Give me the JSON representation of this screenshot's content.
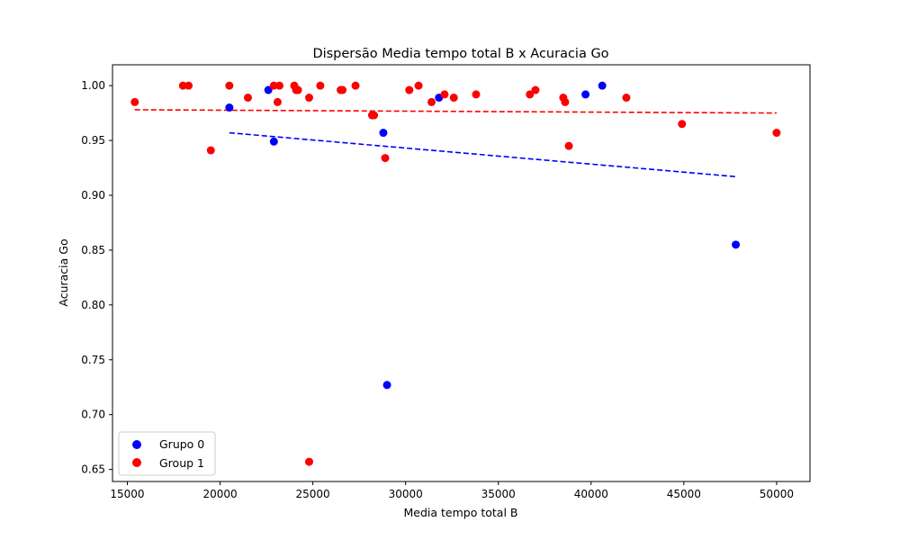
{
  "chart_data": {
    "type": "scatter",
    "title": "Dispersão Media tempo total B x Acuracia Go",
    "xlabel": "Media tempo total B",
    "ylabel": "Acuracia Go",
    "xlim": [
      14200,
      51800
    ],
    "ylim": [
      0.639,
      1.019
    ],
    "xticks": [
      15000,
      20000,
      25000,
      30000,
      35000,
      40000,
      45000,
      50000
    ],
    "yticks": [
      0.65,
      0.7,
      0.75,
      0.8,
      0.85,
      0.9,
      0.95,
      1.0
    ],
    "xtick_labels": [
      "15000",
      "20000",
      "25000",
      "30000",
      "35000",
      "40000",
      "45000",
      "50000"
    ],
    "ytick_labels": [
      "0.65",
      "0.70",
      "0.75",
      "0.80",
      "0.85",
      "0.90",
      "0.95",
      "1.00"
    ],
    "grid": false,
    "legend_position": "lower-left",
    "series": [
      {
        "name": "Grupo 0",
        "color": "#0000ff",
        "points": [
          [
            20500,
            0.98
          ],
          [
            22600,
            0.996
          ],
          [
            22900,
            0.949
          ],
          [
            28200,
            0.973
          ],
          [
            28800,
            0.957
          ],
          [
            29000,
            0.727
          ],
          [
            31800,
            0.989
          ],
          [
            39700,
            0.992
          ],
          [
            40600,
            1.0
          ],
          [
            47800,
            0.855
          ]
        ],
        "trendline": {
          "x": [
            20500,
            47800
          ],
          "y": [
            0.957,
            0.917
          ],
          "style": "dashed"
        }
      },
      {
        "name": "Group 1",
        "color": "#ff0000",
        "points": [
          [
            15400,
            0.985
          ],
          [
            18000,
            1.0
          ],
          [
            18300,
            1.0
          ],
          [
            19500,
            0.941
          ],
          [
            20500,
            1.0
          ],
          [
            21500,
            0.989
          ],
          [
            22900,
            1.0
          ],
          [
            23100,
            0.985
          ],
          [
            23200,
            1.0
          ],
          [
            24000,
            1.0
          ],
          [
            24100,
            0.996
          ],
          [
            24200,
            0.996
          ],
          [
            24800,
            0.989
          ],
          [
            24800,
            0.657
          ],
          [
            25400,
            1.0
          ],
          [
            26500,
            0.996
          ],
          [
            26600,
            0.996
          ],
          [
            27300,
            1.0
          ],
          [
            28200,
            0.973
          ],
          [
            28300,
            0.973
          ],
          [
            28900,
            0.934
          ],
          [
            30200,
            0.996
          ],
          [
            30700,
            1.0
          ],
          [
            31400,
            0.985
          ],
          [
            32100,
            0.992
          ],
          [
            32600,
            0.989
          ],
          [
            33800,
            0.992
          ],
          [
            36700,
            0.992
          ],
          [
            37000,
            0.996
          ],
          [
            38500,
            0.989
          ],
          [
            38600,
            0.985
          ],
          [
            38800,
            0.945
          ],
          [
            41900,
            0.989
          ],
          [
            44900,
            0.965
          ],
          [
            50000,
            0.957
          ]
        ],
        "trendline": {
          "x": [
            15400,
            50000
          ],
          "y": [
            0.978,
            0.975
          ],
          "style": "dashed"
        }
      }
    ]
  }
}
